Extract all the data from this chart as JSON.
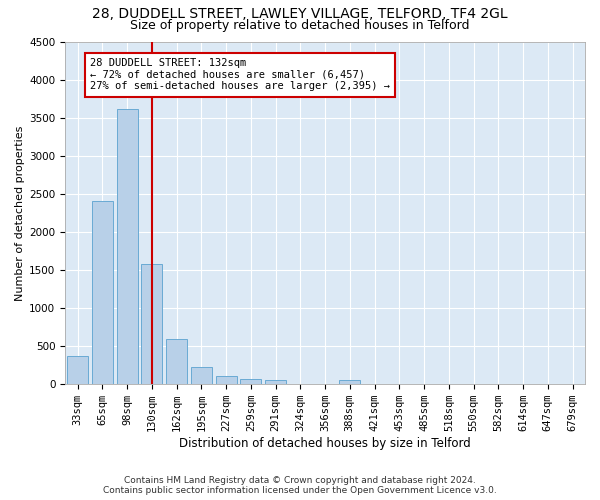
{
  "title1": "28, DUDDELL STREET, LAWLEY VILLAGE, TELFORD, TF4 2GL",
  "title2": "Size of property relative to detached houses in Telford",
  "xlabel": "Distribution of detached houses by size in Telford",
  "ylabel": "Number of detached properties",
  "categories": [
    "33sqm",
    "65sqm",
    "98sqm",
    "130sqm",
    "162sqm",
    "195sqm",
    "227sqm",
    "259sqm",
    "291sqm",
    "324sqm",
    "356sqm",
    "388sqm",
    "421sqm",
    "453sqm",
    "485sqm",
    "518sqm",
    "550sqm",
    "582sqm",
    "614sqm",
    "647sqm",
    "679sqm"
  ],
  "values": [
    370,
    2400,
    3620,
    1580,
    600,
    230,
    110,
    70,
    50,
    0,
    0,
    50,
    0,
    0,
    0,
    0,
    0,
    0,
    0,
    0,
    0
  ],
  "bar_color": "#b8d0e8",
  "bar_edge_color": "#6aaad4",
  "marker_idx": 3,
  "annotation_title": "28 DUDDELL STREET: 132sqm",
  "annotation_line1": "← 72% of detached houses are smaller (6,457)",
  "annotation_line2": "27% of semi-detached houses are larger (2,395) →",
  "red_line_color": "#cc0000",
  "annotation_box_facecolor": "#ffffff",
  "annotation_box_edgecolor": "#cc0000",
  "ylim": [
    0,
    4500
  ],
  "yticks": [
    0,
    500,
    1000,
    1500,
    2000,
    2500,
    3000,
    3500,
    4000,
    4500
  ],
  "fig_bg_color": "#ffffff",
  "plot_bg_color": "#dce9f5",
  "title1_fontsize": 10,
  "title2_fontsize": 9,
  "xlabel_fontsize": 8.5,
  "ylabel_fontsize": 8,
  "tick_fontsize": 7.5,
  "footer1": "Contains HM Land Registry data © Crown copyright and database right 2024.",
  "footer2": "Contains public sector information licensed under the Open Government Licence v3.0.",
  "footer_fontsize": 6.5
}
